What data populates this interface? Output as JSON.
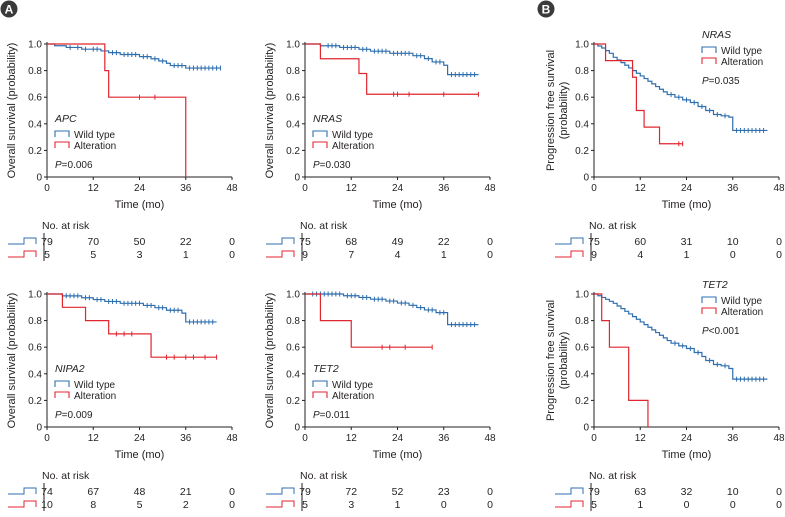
{
  "colors": {
    "wild": "#2f6fb0",
    "alt": "#e0262f",
    "axis": "#231f20",
    "badge": "#3a3a3a"
  },
  "panel_labels": [
    "A",
    "B"
  ],
  "chart_data": [
    {
      "id": "apc",
      "type": "line",
      "gene": "APC",
      "pvalue": "P=0.006",
      "ylabel": "Overall survival (probability)",
      "ylabel_lines": [],
      "xlabel": "Time (mo)",
      "xticks": [
        0,
        12,
        24,
        36,
        48
      ],
      "yticks": [
        "0",
        "0.2",
        "0.4",
        "0.6",
        "0.8",
        "1.0"
      ],
      "xlim": [
        0,
        48
      ],
      "ylim": [
        0,
        1
      ],
      "legend": [
        "Wild type",
        "Alteration"
      ],
      "series": [
        {
          "name": "Wild type",
          "steps": [
            [
              0,
              1
            ],
            [
              2,
              0.987
            ],
            [
              5,
              0.974
            ],
            [
              9,
              0.961
            ],
            [
              14,
              0.948
            ],
            [
              16,
              0.935
            ],
            [
              19,
              0.921
            ],
            [
              24,
              0.905
            ],
            [
              27,
              0.889
            ],
            [
              29,
              0.872
            ],
            [
              31,
              0.855
            ],
            [
              32,
              0.838
            ],
            [
              36,
              0.819
            ],
            [
              45,
              0.819
            ]
          ],
          "censor": [
            6,
            8,
            10,
            12,
            13,
            17,
            18,
            20,
            21,
            22,
            23,
            25,
            26,
            28,
            30,
            33,
            34,
            35,
            37,
            38,
            39,
            40,
            41,
            42,
            43,
            44,
            45
          ]
        },
        {
          "name": "Alteration",
          "steps": [
            [
              0,
              1
            ],
            [
              15,
              0.8
            ],
            [
              16,
              0.6
            ],
            [
              36,
              0.6
            ],
            [
              36,
              0
            ]
          ],
          "censor": [
            24,
            28
          ]
        }
      ],
      "risk": {
        "title": "No. at risk",
        "wild": [
          79,
          70,
          50,
          22,
          0
        ],
        "alt": [
          5,
          5,
          3,
          1,
          0
        ]
      }
    },
    {
      "id": "nras_os",
      "type": "line",
      "gene": "NRAS",
      "pvalue": "P=0.030",
      "ylabel": "Overall survival (probability)",
      "ylabel_lines": [],
      "xlabel": "Time (mo)",
      "xticks": [
        0,
        12,
        24,
        36,
        48
      ],
      "yticks": [
        "0",
        "0.2",
        "0.4",
        "0.6",
        "0.8",
        "1.0"
      ],
      "xlim": [
        0,
        48
      ],
      "ylim": [
        0,
        1
      ],
      "legend": [
        "Wild type",
        "Alteration"
      ],
      "series": [
        {
          "name": "Wild type",
          "steps": [
            [
              0,
              1
            ],
            [
              4,
              0.987
            ],
            [
              9,
              0.974
            ],
            [
              14,
              0.96
            ],
            [
              17,
              0.946
            ],
            [
              22,
              0.93
            ],
            [
              28,
              0.912
            ],
            [
              31,
              0.89
            ],
            [
              33,
              0.865
            ],
            [
              36,
              0.84
            ],
            [
              37,
              0.77
            ],
            [
              45,
              0.77
            ]
          ],
          "censor": [
            6,
            7,
            8,
            10,
            11,
            12,
            13,
            15,
            16,
            18,
            19,
            20,
            21,
            23,
            24,
            25,
            26,
            27,
            29,
            30,
            32,
            34,
            35,
            38,
            39,
            40,
            41,
            42,
            43,
            44
          ]
        },
        {
          "name": "Alteration",
          "steps": [
            [
              0,
              1
            ],
            [
              4,
              0.889
            ],
            [
              14,
              0.778
            ],
            [
              16,
              0.622
            ],
            [
              45,
              0.622
            ]
          ],
          "censor": [
            23,
            24,
            27,
            36,
            45
          ]
        }
      ],
      "risk": {
        "title": "No. at risk",
        "wild": [
          75,
          68,
          49,
          22,
          0
        ],
        "alt": [
          9,
          7,
          4,
          1,
          0
        ]
      }
    },
    {
      "id": "nras_pfs",
      "type": "line",
      "gene": "NRAS",
      "pvalue": "P=0.035",
      "ylabel": "",
      "ylabel_lines": [
        "Progression free survival",
        "(probability)"
      ],
      "xlabel": "Time (mo)",
      "xticks": [
        0,
        12,
        24,
        36,
        48
      ],
      "yticks": [
        "0",
        "0.2",
        "0.4",
        "0.6",
        "0.8",
        "1.0"
      ],
      "xlim": [
        0,
        48
      ],
      "ylim": [
        0,
        1
      ],
      "legend": [
        "Wild type",
        "Alteration"
      ],
      "series": [
        {
          "name": "Wild type",
          "steps": [
            [
              0,
              1
            ],
            [
              1,
              0.985
            ],
            [
              2,
              0.97
            ],
            [
              3,
              0.95
            ],
            [
              4,
              0.93
            ],
            [
              5,
              0.9
            ],
            [
              6,
              0.88
            ],
            [
              7,
              0.86
            ],
            [
              8,
              0.84
            ],
            [
              9,
              0.82
            ],
            [
              10,
              0.8
            ],
            [
              11,
              0.78
            ],
            [
              12,
              0.76
            ],
            [
              13,
              0.74
            ],
            [
              14,
              0.72
            ],
            [
              15,
              0.7
            ],
            [
              16,
              0.68
            ],
            [
              17,
              0.66
            ],
            [
              18,
              0.64
            ],
            [
              19,
              0.62
            ],
            [
              21,
              0.6
            ],
            [
              23,
              0.58
            ],
            [
              25,
              0.56
            ],
            [
              27,
              0.53
            ],
            [
              29,
              0.5
            ],
            [
              31,
              0.47
            ],
            [
              33,
              0.46
            ],
            [
              35,
              0.45
            ],
            [
              36,
              0.35
            ],
            [
              45,
              0.35
            ]
          ],
          "censor": [
            20,
            22,
            24,
            26,
            28,
            30,
            32,
            34,
            37,
            38,
            39,
            40,
            41,
            42,
            43,
            44
          ]
        },
        {
          "name": "Alteration",
          "steps": [
            [
              0,
              1
            ],
            [
              3,
              0.875
            ],
            [
              10,
              0.75
            ],
            [
              11,
              0.5
            ],
            [
              13,
              0.375
            ],
            [
              17,
              0.25
            ],
            [
              23,
              0.25
            ]
          ],
          "censor": [
            22,
            23
          ]
        }
      ],
      "risk": {
        "title": "No. at risk",
        "wild": [
          75,
          60,
          31,
          10,
          0
        ],
        "alt": [
          9,
          4,
          1,
          0,
          0
        ]
      }
    },
    {
      "id": "nipa2",
      "type": "line",
      "gene": "NIPA2",
      "pvalue": "P=0.009",
      "ylabel": "Overall survival (probability)",
      "ylabel_lines": [],
      "xlabel": "Time (mo)",
      "xticks": [
        0,
        12,
        24,
        36,
        48
      ],
      "yticks": [
        "0",
        "0.2",
        "0.4",
        "0.6",
        "0.8",
        "1.0"
      ],
      "xlim": [
        0,
        48
      ],
      "ylim": [
        0,
        1
      ],
      "legend": [
        "Wild type",
        "Alteration"
      ],
      "series": [
        {
          "name": "Wild type",
          "steps": [
            [
              0,
              1
            ],
            [
              4,
              0.986
            ],
            [
              9,
              0.972
            ],
            [
              12,
              0.958
            ],
            [
              15,
              0.944
            ],
            [
              19,
              0.93
            ],
            [
              25,
              0.914
            ],
            [
              28,
              0.897
            ],
            [
              31,
              0.878
            ],
            [
              35,
              0.856
            ],
            [
              36,
              0.79
            ],
            [
              44,
              0.79
            ]
          ],
          "censor": [
            5,
            6,
            7,
            8,
            10,
            11,
            13,
            14,
            16,
            17,
            18,
            20,
            21,
            22,
            23,
            24,
            26,
            27,
            29,
            30,
            32,
            33,
            34,
            37,
            38,
            39,
            40,
            41,
            42,
            43
          ]
        },
        {
          "name": "Alteration",
          "steps": [
            [
              0,
              1
            ],
            [
              4,
              0.9
            ],
            [
              10,
              0.8
            ],
            [
              16,
              0.7
            ],
            [
              27,
              0.525
            ],
            [
              44,
              0.525
            ]
          ],
          "censor": [
            18,
            20,
            22,
            31,
            33,
            36,
            38,
            41,
            44
          ]
        }
      ],
      "risk": {
        "title": "No. at risk",
        "wild": [
          74,
          67,
          48,
          21,
          0
        ],
        "alt": [
          10,
          8,
          5,
          2,
          0
        ]
      }
    },
    {
      "id": "tet2_os",
      "type": "line",
      "gene": "TET2",
      "pvalue": "P=0.011",
      "ylabel": "Overall survival (probability)",
      "ylabel_lines": [],
      "xlabel": "Time (mo)",
      "xticks": [
        0,
        12,
        24,
        36,
        48
      ],
      "yticks": [
        "0",
        "0.2",
        "0.4",
        "0.6",
        "0.8",
        "1.0"
      ],
      "xlim": [
        0,
        48
      ],
      "ylim": [
        0,
        1
      ],
      "legend": [
        "Wild type",
        "Alteration"
      ],
      "series": [
        {
          "name": "Wild type",
          "steps": [
            [
              0,
              1
            ],
            [
              10,
              0.987
            ],
            [
              14,
              0.974
            ],
            [
              17,
              0.961
            ],
            [
              21,
              0.947
            ],
            [
              24,
              0.932
            ],
            [
              27,
              0.915
            ],
            [
              29,
              0.898
            ],
            [
              31,
              0.88
            ],
            [
              34,
              0.86
            ],
            [
              37,
              0.77
            ],
            [
              45,
              0.77
            ]
          ],
          "censor": [
            2,
            3,
            4,
            5,
            6,
            7,
            8,
            9,
            11,
            12,
            13,
            15,
            16,
            18,
            19,
            20,
            22,
            23,
            25,
            26,
            28,
            30,
            32,
            33,
            35,
            36,
            38,
            39,
            40,
            41,
            42,
            43,
            44
          ]
        },
        {
          "name": "Alteration",
          "steps": [
            [
              0,
              1
            ],
            [
              4,
              0.8
            ],
            [
              12,
              0.6
            ],
            [
              33,
              0.6
            ]
          ],
          "censor": [
            20,
            22,
            26,
            33
          ]
        }
      ],
      "risk": {
        "title": "No. at risk",
        "wild": [
          79,
          72,
          52,
          23,
          0
        ],
        "alt": [
          5,
          3,
          1,
          0,
          0
        ]
      }
    },
    {
      "id": "tet2_pfs",
      "type": "line",
      "gene": "TET2",
      "pvalue": "P<0.001",
      "ylabel": "",
      "ylabel_lines": [
        "Progression free survival",
        "(probability)"
      ],
      "xlabel": "Time (mo)",
      "xticks": [
        0,
        12,
        24,
        36,
        48
      ],
      "yticks": [
        "0",
        "0.2",
        "0.4",
        "0.6",
        "0.8",
        "1.0"
      ],
      "xlim": [
        0,
        48
      ],
      "ylim": [
        0,
        1
      ],
      "legend": [
        "Wild type",
        "Alteration"
      ],
      "series": [
        {
          "name": "Wild type",
          "steps": [
            [
              0,
              1
            ],
            [
              1,
              0.987
            ],
            [
              2,
              0.974
            ],
            [
              3,
              0.96
            ],
            [
              4,
              0.945
            ],
            [
              5,
              0.93
            ],
            [
              6,
              0.91
            ],
            [
              7,
              0.89
            ],
            [
              8,
              0.87
            ],
            [
              9,
              0.85
            ],
            [
              10,
              0.83
            ],
            [
              11,
              0.81
            ],
            [
              12,
              0.79
            ],
            [
              13,
              0.77
            ],
            [
              14,
              0.75
            ],
            [
              15,
              0.73
            ],
            [
              16,
              0.71
            ],
            [
              17,
              0.69
            ],
            [
              18,
              0.67
            ],
            [
              19,
              0.65
            ],
            [
              20,
              0.63
            ],
            [
              22,
              0.61
            ],
            [
              24,
              0.59
            ],
            [
              26,
              0.56
            ],
            [
              28,
              0.53
            ],
            [
              29,
              0.5
            ],
            [
              31,
              0.47
            ],
            [
              33,
              0.46
            ],
            [
              35,
              0.44
            ],
            [
              36,
              0.36
            ],
            [
              45,
              0.36
            ]
          ],
          "censor": [
            21,
            23,
            25,
            27,
            30,
            32,
            34,
            37,
            38,
            39,
            40,
            41,
            42,
            43,
            44
          ]
        },
        {
          "name": "Alteration",
          "steps": [
            [
              0,
              1
            ],
            [
              2,
              0.8
            ],
            [
              4,
              0.6
            ],
            [
              9,
              0.2
            ],
            [
              14,
              0
            ]
          ],
          "censor": []
        }
      ],
      "risk": {
        "title": "No. at risk",
        "wild": [
          79,
          63,
          32,
          10,
          0
        ],
        "alt": [
          5,
          1,
          0,
          0,
          0
        ]
      }
    }
  ]
}
